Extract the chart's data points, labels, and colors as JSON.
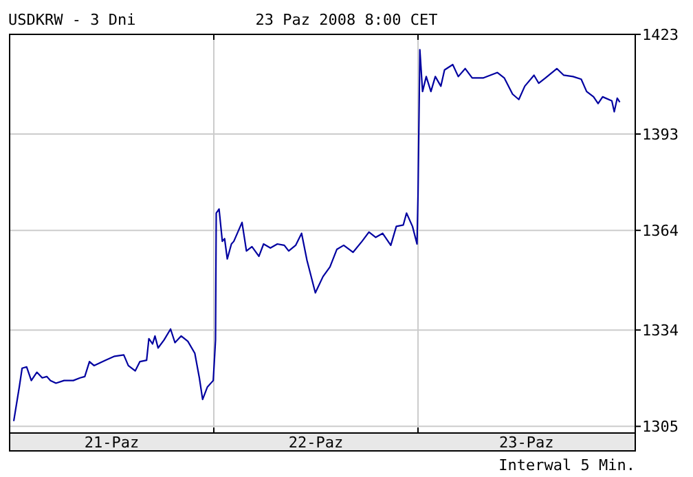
{
  "chart_data": {
    "type": "line",
    "title": "USDKRW - 3 Dni",
    "subtitle": "23 Paz 2008 8:00 CET",
    "annotations": [
      "Interwal 5 Min."
    ],
    "x": [
      "2008-10-21T00:29",
      "2008-10-21T01:08",
      "2008-10-21T01:28",
      "2008-10-21T02:00",
      "2008-10-21T02:33",
      "2008-10-21T03:12",
      "2008-10-21T03:50",
      "2008-10-21T04:22",
      "2008-10-21T04:48",
      "2008-10-21T05:27",
      "2008-10-21T06:24",
      "2008-10-21T07:29",
      "2008-10-21T08:17",
      "2008-10-21T08:50",
      "2008-10-21T09:23",
      "2008-10-21T09:55",
      "2008-10-21T11:15",
      "2008-10-21T12:20",
      "2008-10-21T13:25",
      "2008-10-21T13:57",
      "2008-10-21T14:46",
      "2008-10-21T15:19",
      "2008-10-21T16:06",
      "2008-10-21T16:22",
      "2008-10-21T16:48",
      "2008-10-21T17:05",
      "2008-10-21T17:27",
      "2008-10-21T18:09",
      "2008-10-21T18:55",
      "2008-10-21T19:26",
      "2008-10-21T20:10",
      "2008-10-21T20:57",
      "2008-10-21T21:46",
      "2008-10-21T22:18",
      "2008-10-21T22:41",
      "2008-10-21T23:14",
      "2008-10-21T23:56",
      "2008-10-22T00:12",
      "2008-10-22T00:17",
      "2008-10-22T00:37",
      "2008-10-22T01:00",
      "2008-10-22T01:16",
      "2008-10-22T01:35",
      "2008-10-22T02:04",
      "2008-10-22T02:21",
      "2008-10-22T03:19",
      "2008-10-22T03:50",
      "2008-10-22T04:29",
      "2008-10-22T05:18",
      "2008-10-22T05:51",
      "2008-10-22T06:39",
      "2008-10-22T07:28",
      "2008-10-22T08:17",
      "2008-10-22T08:48",
      "2008-10-22T09:37",
      "2008-10-22T10:19",
      "2008-10-22T10:57",
      "2008-10-22T11:56",
      "2008-10-22T12:50",
      "2008-10-22T13:39",
      "2008-10-22T14:28",
      "2008-10-22T15:16",
      "2008-10-22T16:22",
      "2008-10-22T17:25",
      "2008-10-22T18:14",
      "2008-10-22T19:02",
      "2008-10-22T19:51",
      "2008-10-22T20:48",
      "2008-10-22T21:27",
      "2008-10-22T22:16",
      "2008-10-22T22:39",
      "2008-10-22T23:21",
      "2008-10-22T23:53",
      "2008-10-23T00:00",
      "2008-10-23T00:13",
      "2008-10-23T00:32",
      "2008-10-23T00:58",
      "2008-10-23T01:31",
      "2008-10-23T02:02",
      "2008-10-23T02:41",
      "2008-10-23T03:07",
      "2008-10-23T04:05",
      "2008-10-23T04:44",
      "2008-10-23T05:33",
      "2008-10-23T06:22",
      "2008-10-23T07:42",
      "2008-10-23T09:20",
      "2008-10-23T10:08",
      "2008-10-23T11:07",
      "2008-10-23T11:51",
      "2008-10-23T12:33",
      "2008-10-23T13:38",
      "2008-10-23T14:11",
      "2008-10-23T14:59",
      "2008-10-23T16:19",
      "2008-10-23T17:08",
      "2008-10-23T18:13",
      "2008-10-23T19:11",
      "2008-10-23T19:49",
      "2008-10-23T20:38",
      "2008-10-23T21:10",
      "2008-10-23T21:42",
      "2008-10-23T22:47",
      "2008-10-23T23:04",
      "2008-10-23T23:25",
      "2008-10-23T23:43"
    ],
    "series": [
      {
        "color": "#0000a0",
        "values": [
          1306.6,
          1316.8,
          1322.5,
          1322.9,
          1318.8,
          1321.3,
          1319.6,
          1320,
          1318.8,
          1318,
          1318.8,
          1318.8,
          1319.6,
          1320,
          1324.5,
          1323.3,
          1324.9,
          1326.1,
          1326.5,
          1323.3,
          1321.7,
          1324.5,
          1324.9,
          1331.4,
          1329.8,
          1332.2,
          1328.6,
          1331,
          1334.3,
          1330.2,
          1332.2,
          1330.6,
          1327,
          1319.6,
          1313.1,
          1316.8,
          1318.8,
          1331,
          1369.2,
          1370.4,
          1360.7,
          1361.5,
          1355.4,
          1359.9,
          1360.7,
          1366.4,
          1357.8,
          1359.1,
          1356.2,
          1359.9,
          1358.7,
          1359.9,
          1359.5,
          1357.8,
          1359.5,
          1363.1,
          1355,
          1345.2,
          1350.1,
          1353,
          1358.3,
          1359.5,
          1357.4,
          1360.7,
          1363.5,
          1361.9,
          1363.1,
          1359.5,
          1365.2,
          1365.6,
          1369.2,
          1365.2,
          1359.9,
          1374.5,
          1418.4,
          1405.8,
          1410.3,
          1405.8,
          1410.3,
          1407.4,
          1412.3,
          1413.9,
          1410.3,
          1412.7,
          1409.9,
          1409.9,
          1411.5,
          1409.9,
          1405,
          1403.4,
          1407.4,
          1410.7,
          1408.3,
          1409.9,
          1412.7,
          1410.7,
          1410.3,
          1409.5,
          1405.8,
          1404.2,
          1402.2,
          1404.2,
          1403,
          1399.7,
          1403.8,
          1402.6
        ]
      }
    ],
    "xlim": [
      "2008-10-21T00:00",
      "2008-10-24T01:32"
    ],
    "xticks": [
      {
        "value": "2008-10-22",
        "label": null
      },
      {
        "value": "2008-10-23",
        "label": null
      },
      {
        "value": "2008-10-21T12:00",
        "label": "21-Paz"
      },
      {
        "value": "2008-10-22T12:00",
        "label": "22-Paz"
      },
      {
        "value": "2008-10-23T12:45",
        "label": "23-Paz"
      }
    ],
    "ylim": [
      1303,
      1423
    ],
    "yticks": [
      1305,
      1334,
      1364,
      1393,
      1423
    ],
    "grid": true,
    "marker": "none",
    "line_style": "solid"
  }
}
